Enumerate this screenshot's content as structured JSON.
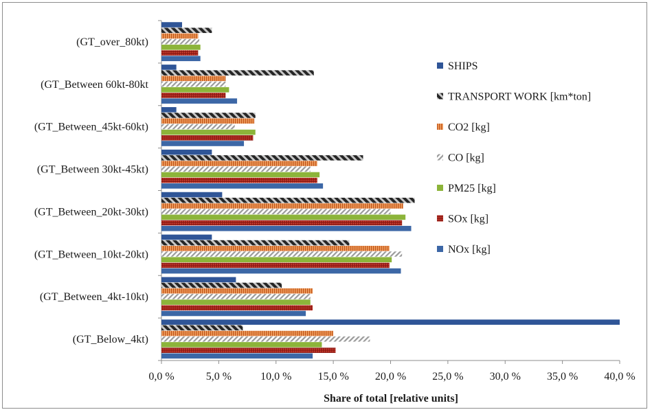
{
  "chart_data": {
    "type": "bar",
    "orientation": "horizontal",
    "categories": [
      "(GT_Below_4kt)",
      "(GT_Between_4kt-10kt)",
      "(GT_Between_10kt-20kt)",
      "(GT_Between_20kt-30kt)",
      "(GT_Between 30kt-45kt)",
      "(GT_Between_45kt-60kt)",
      "(GT_Between 60kt-80kt",
      "(GT_over_80kt)"
    ],
    "series": [
      {
        "name": "NOx [kg]",
        "color": "#3c67a6",
        "pattern": "solid",
        "values": [
          13.2,
          12.6,
          20.9,
          21.8,
          14.1,
          7.2,
          6.6,
          3.4
        ]
      },
      {
        "name": "SOx [kg]",
        "color": "#c0281e",
        "pattern": "dots",
        "values": [
          15.2,
          13.2,
          19.9,
          21.0,
          13.6,
          8.0,
          5.6,
          3.2
        ]
      },
      {
        "name": "PM25 [kg]",
        "color": "#8cb43a",
        "pattern": "solid",
        "values": [
          14.0,
          13.0,
          20.1,
          21.3,
          13.8,
          8.2,
          5.9,
          3.4
        ]
      },
      {
        "name": "CO [kg]",
        "color": "#a8a8a8",
        "pattern": "diag",
        "values": [
          18.2,
          13.0,
          21.0,
          20.0,
          13.0,
          6.4,
          5.6,
          3.3
        ]
      },
      {
        "name": "CO2 [kg]",
        "color": "#e07a30",
        "pattern": "vlines",
        "values": [
          15.0,
          13.2,
          19.9,
          21.1,
          13.6,
          8.1,
          5.6,
          3.2
        ]
      },
      {
        "name": "TRANSPORT WORK [km*ton]",
        "color": "#404040",
        "pattern": "hatch",
        "values": [
          7.1,
          10.5,
          16.4,
          22.1,
          17.6,
          8.2,
          13.3,
          4.4
        ]
      },
      {
        "name": "SHIPS",
        "color": "#2f5597",
        "pattern": "solid",
        "values": [
          40.0,
          6.5,
          4.4,
          5.3,
          4.4,
          1.3,
          1.3,
          1.8
        ]
      }
    ],
    "x_ticks": [
      "0,0 %",
      "5,0 %",
      "10,0 %",
      "15,0 %",
      "20,0 %",
      "25,0 %",
      "30,0 %",
      "35,0 %",
      "40,0 %"
    ],
    "xlim": [
      0,
      40
    ],
    "xlabel": "Share of total [relative units]",
    "ylabel": "",
    "title": "",
    "grid": false,
    "legend_position": "right",
    "legend_order": [
      "SHIPS",
      "TRANSPORT WORK [km*ton]",
      "CO2 [kg]",
      "CO [kg]",
      "PM25 [kg]",
      "SOx [kg]",
      "NOx [kg]"
    ]
  }
}
